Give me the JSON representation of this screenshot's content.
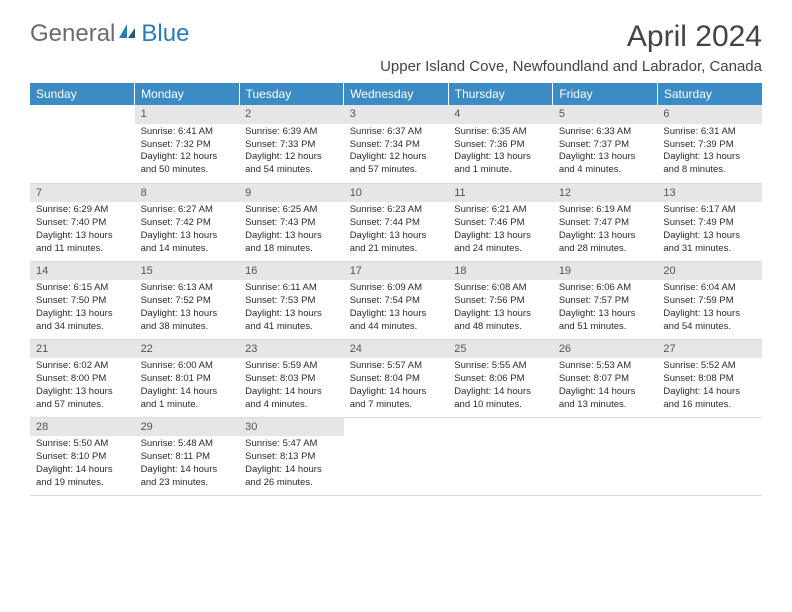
{
  "logo": {
    "general": "General",
    "blue": "Blue"
  },
  "title": "April 2024",
  "location": "Upper Island Cove, Newfoundland and Labrador, Canada",
  "headers": [
    "Sunday",
    "Monday",
    "Tuesday",
    "Wednesday",
    "Thursday",
    "Friday",
    "Saturday"
  ],
  "colors": {
    "header_bg": "#3b8bc4",
    "header_text": "#ffffff",
    "daynum_bg": "#e6e6e6",
    "text": "#2b2b2b",
    "logo_general": "#6b6b6b",
    "logo_blue": "#2b7bb9"
  },
  "weeks": [
    [
      {
        "n": "",
        "lines": []
      },
      {
        "n": "1",
        "lines": [
          "Sunrise: 6:41 AM",
          "Sunset: 7:32 PM",
          "Daylight: 12 hours",
          "and 50 minutes."
        ]
      },
      {
        "n": "2",
        "lines": [
          "Sunrise: 6:39 AM",
          "Sunset: 7:33 PM",
          "Daylight: 12 hours",
          "and 54 minutes."
        ]
      },
      {
        "n": "3",
        "lines": [
          "Sunrise: 6:37 AM",
          "Sunset: 7:34 PM",
          "Daylight: 12 hours",
          "and 57 minutes."
        ]
      },
      {
        "n": "4",
        "lines": [
          "Sunrise: 6:35 AM",
          "Sunset: 7:36 PM",
          "Daylight: 13 hours",
          "and 1 minute."
        ]
      },
      {
        "n": "5",
        "lines": [
          "Sunrise: 6:33 AM",
          "Sunset: 7:37 PM",
          "Daylight: 13 hours",
          "and 4 minutes."
        ]
      },
      {
        "n": "6",
        "lines": [
          "Sunrise: 6:31 AM",
          "Sunset: 7:39 PM",
          "Daylight: 13 hours",
          "and 8 minutes."
        ]
      }
    ],
    [
      {
        "n": "7",
        "lines": [
          "Sunrise: 6:29 AM",
          "Sunset: 7:40 PM",
          "Daylight: 13 hours",
          "and 11 minutes."
        ]
      },
      {
        "n": "8",
        "lines": [
          "Sunrise: 6:27 AM",
          "Sunset: 7:42 PM",
          "Daylight: 13 hours",
          "and 14 minutes."
        ]
      },
      {
        "n": "9",
        "lines": [
          "Sunrise: 6:25 AM",
          "Sunset: 7:43 PM",
          "Daylight: 13 hours",
          "and 18 minutes."
        ]
      },
      {
        "n": "10",
        "lines": [
          "Sunrise: 6:23 AM",
          "Sunset: 7:44 PM",
          "Daylight: 13 hours",
          "and 21 minutes."
        ]
      },
      {
        "n": "11",
        "lines": [
          "Sunrise: 6:21 AM",
          "Sunset: 7:46 PM",
          "Daylight: 13 hours",
          "and 24 minutes."
        ]
      },
      {
        "n": "12",
        "lines": [
          "Sunrise: 6:19 AM",
          "Sunset: 7:47 PM",
          "Daylight: 13 hours",
          "and 28 minutes."
        ]
      },
      {
        "n": "13",
        "lines": [
          "Sunrise: 6:17 AM",
          "Sunset: 7:49 PM",
          "Daylight: 13 hours",
          "and 31 minutes."
        ]
      }
    ],
    [
      {
        "n": "14",
        "lines": [
          "Sunrise: 6:15 AM",
          "Sunset: 7:50 PM",
          "Daylight: 13 hours",
          "and 34 minutes."
        ]
      },
      {
        "n": "15",
        "lines": [
          "Sunrise: 6:13 AM",
          "Sunset: 7:52 PM",
          "Daylight: 13 hours",
          "and 38 minutes."
        ]
      },
      {
        "n": "16",
        "lines": [
          "Sunrise: 6:11 AM",
          "Sunset: 7:53 PM",
          "Daylight: 13 hours",
          "and 41 minutes."
        ]
      },
      {
        "n": "17",
        "lines": [
          "Sunrise: 6:09 AM",
          "Sunset: 7:54 PM",
          "Daylight: 13 hours",
          "and 44 minutes."
        ]
      },
      {
        "n": "18",
        "lines": [
          "Sunrise: 6:08 AM",
          "Sunset: 7:56 PM",
          "Daylight: 13 hours",
          "and 48 minutes."
        ]
      },
      {
        "n": "19",
        "lines": [
          "Sunrise: 6:06 AM",
          "Sunset: 7:57 PM",
          "Daylight: 13 hours",
          "and 51 minutes."
        ]
      },
      {
        "n": "20",
        "lines": [
          "Sunrise: 6:04 AM",
          "Sunset: 7:59 PM",
          "Daylight: 13 hours",
          "and 54 minutes."
        ]
      }
    ],
    [
      {
        "n": "21",
        "lines": [
          "Sunrise: 6:02 AM",
          "Sunset: 8:00 PM",
          "Daylight: 13 hours",
          "and 57 minutes."
        ]
      },
      {
        "n": "22",
        "lines": [
          "Sunrise: 6:00 AM",
          "Sunset: 8:01 PM",
          "Daylight: 14 hours",
          "and 1 minute."
        ]
      },
      {
        "n": "23",
        "lines": [
          "Sunrise: 5:59 AM",
          "Sunset: 8:03 PM",
          "Daylight: 14 hours",
          "and 4 minutes."
        ]
      },
      {
        "n": "24",
        "lines": [
          "Sunrise: 5:57 AM",
          "Sunset: 8:04 PM",
          "Daylight: 14 hours",
          "and 7 minutes."
        ]
      },
      {
        "n": "25",
        "lines": [
          "Sunrise: 5:55 AM",
          "Sunset: 8:06 PM",
          "Daylight: 14 hours",
          "and 10 minutes."
        ]
      },
      {
        "n": "26",
        "lines": [
          "Sunrise: 5:53 AM",
          "Sunset: 8:07 PM",
          "Daylight: 14 hours",
          "and 13 minutes."
        ]
      },
      {
        "n": "27",
        "lines": [
          "Sunrise: 5:52 AM",
          "Sunset: 8:08 PM",
          "Daylight: 14 hours",
          "and 16 minutes."
        ]
      }
    ],
    [
      {
        "n": "28",
        "lines": [
          "Sunrise: 5:50 AM",
          "Sunset: 8:10 PM",
          "Daylight: 14 hours",
          "and 19 minutes."
        ]
      },
      {
        "n": "29",
        "lines": [
          "Sunrise: 5:48 AM",
          "Sunset: 8:11 PM",
          "Daylight: 14 hours",
          "and 23 minutes."
        ]
      },
      {
        "n": "30",
        "lines": [
          "Sunrise: 5:47 AM",
          "Sunset: 8:13 PM",
          "Daylight: 14 hours",
          "and 26 minutes."
        ]
      },
      {
        "n": "",
        "lines": []
      },
      {
        "n": "",
        "lines": []
      },
      {
        "n": "",
        "lines": []
      },
      {
        "n": "",
        "lines": []
      }
    ]
  ]
}
